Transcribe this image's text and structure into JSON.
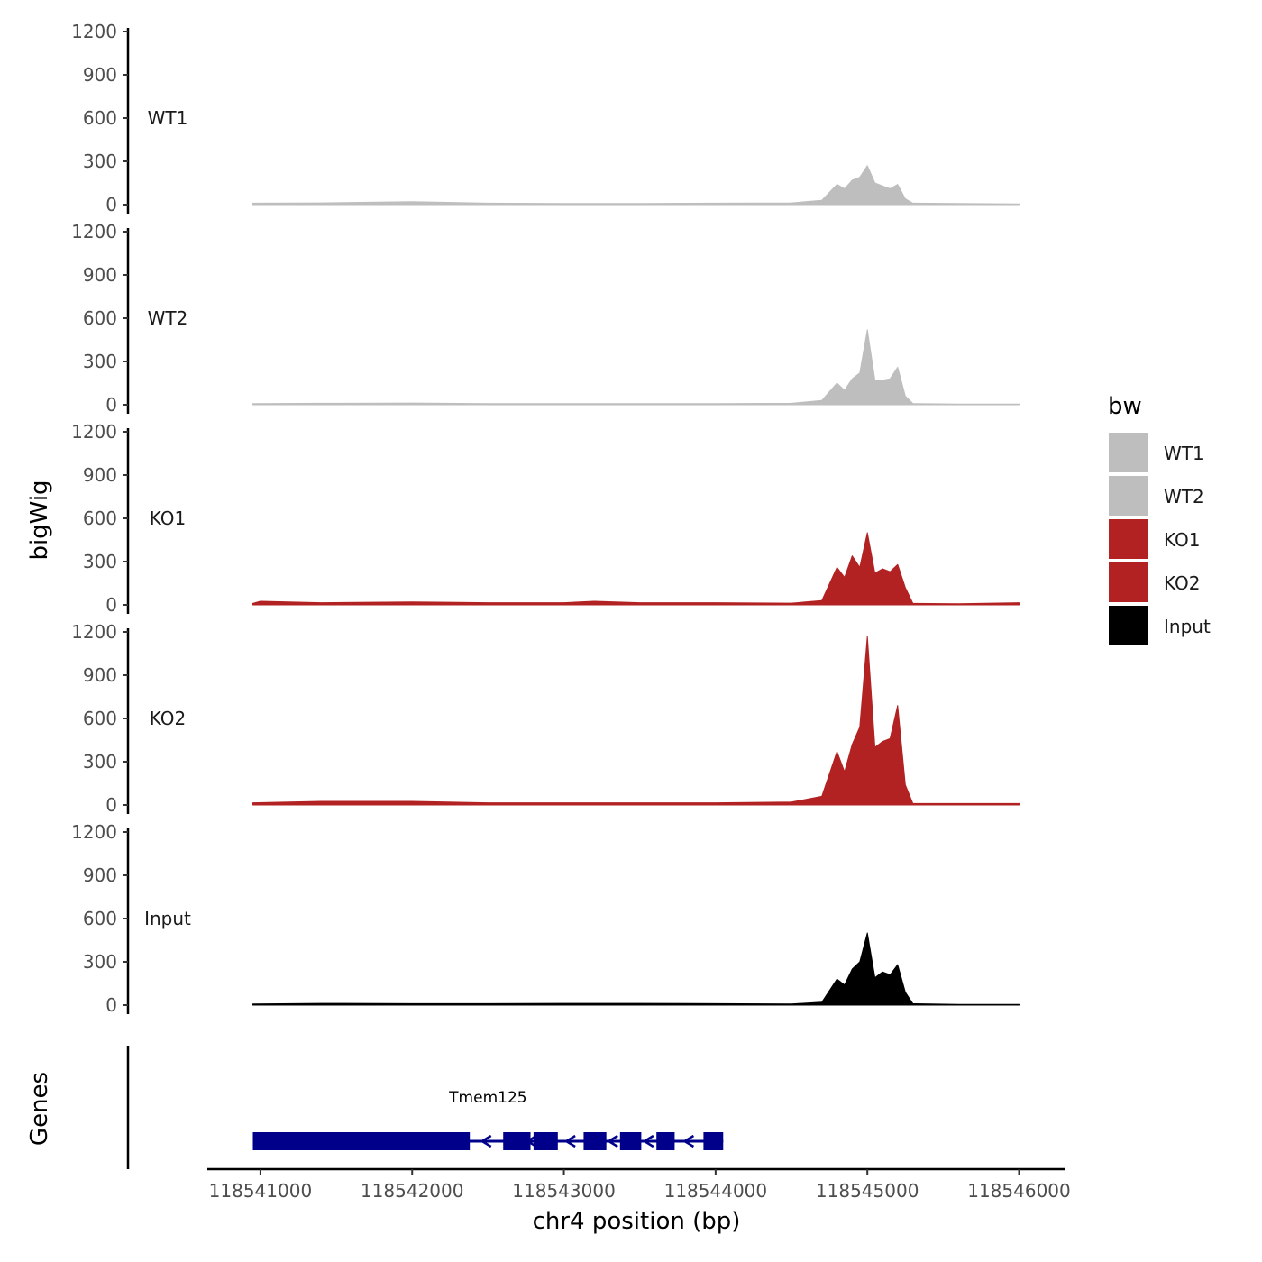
{
  "chart_data": {
    "type": "area",
    "title": "",
    "xlabel": "chr4 position (bp)",
    "ylabel": "bigWig",
    "genes_label": "Genes",
    "xlim": [
      118540650,
      118546300
    ],
    "ylim": [
      0,
      1200
    ],
    "x_ticks": [
      118541000,
      118542000,
      118543000,
      118544000,
      118545000,
      118546000
    ],
    "x_tick_labels": [
      "118541000",
      "118542000",
      "118543000",
      "118544000",
      "118545000",
      "118546000"
    ],
    "y_ticks": [
      0,
      300,
      600,
      900,
      1200
    ],
    "y_tick_labels": [
      "0",
      "300",
      "600",
      "900",
      "1200"
    ],
    "legend": {
      "title": "bw",
      "position": "right",
      "entries": [
        {
          "label": "WT1",
          "color": "#BEBEBE"
        },
        {
          "label": "WT2",
          "color": "#BEBEBE"
        },
        {
          "label": "KO1",
          "color": "#B22222"
        },
        {
          "label": "KO2",
          "color": "#B22222"
        },
        {
          "label": "Input",
          "color": "#000000"
        }
      ]
    },
    "series": [
      {
        "name": "WT1",
        "color": "#BEBEBE",
        "x": [
          118540950,
          118541400,
          118542000,
          118542500,
          118543000,
          118543500,
          118544000,
          118544500,
          118544700,
          118544800,
          118544850,
          118544900,
          118544950,
          118545000,
          118545050,
          118545100,
          118545150,
          118545200,
          118545250,
          118545300,
          118545600,
          118546000
        ],
        "values": [
          10,
          12,
          20,
          10,
          8,
          8,
          10,
          12,
          30,
          140,
          110,
          170,
          190,
          270,
          150,
          130,
          110,
          140,
          40,
          10,
          8,
          5
        ]
      },
      {
        "name": "WT2",
        "color": "#BEBEBE",
        "x": [
          118540950,
          118541400,
          118542000,
          118542500,
          118543000,
          118543500,
          118544000,
          118544500,
          118544700,
          118544800,
          118544850,
          118544900,
          118544950,
          118545000,
          118545050,
          118545100,
          118545150,
          118545200,
          118545250,
          118545300,
          118545600,
          118546000
        ],
        "values": [
          8,
          10,
          12,
          8,
          8,
          8,
          8,
          10,
          30,
          150,
          100,
          180,
          220,
          520,
          170,
          170,
          180,
          260,
          60,
          8,
          5,
          5
        ]
      },
      {
        "name": "KO1",
        "color": "#B22222",
        "x": [
          118540950,
          118541000,
          118541400,
          118542000,
          118542500,
          118543000,
          118543200,
          118543500,
          118544000,
          118544500,
          118544700,
          118544800,
          118544850,
          118544900,
          118544950,
          118545000,
          118545050,
          118545100,
          118545150,
          118545200,
          118545250,
          118545300,
          118545600,
          118546000
        ],
        "values": [
          10,
          25,
          15,
          20,
          15,
          15,
          25,
          15,
          15,
          12,
          30,
          260,
          190,
          340,
          260,
          500,
          220,
          250,
          230,
          280,
          120,
          10,
          8,
          15
        ]
      },
      {
        "name": "KO2",
        "color": "#B22222",
        "x": [
          118540950,
          118541400,
          118542000,
          118542500,
          118543000,
          118543500,
          118544000,
          118544500,
          118544700,
          118544800,
          118544850,
          118544900,
          118544950,
          118545000,
          118545050,
          118545100,
          118545150,
          118545200,
          118545250,
          118545300,
          118545600,
          118546000
        ],
        "values": [
          15,
          25,
          25,
          15,
          15,
          15,
          15,
          20,
          60,
          370,
          230,
          420,
          540,
          1170,
          400,
          440,
          460,
          690,
          140,
          10,
          10,
          10
        ]
      },
      {
        "name": "Input",
        "color": "#000000",
        "x": [
          118540950,
          118541400,
          118542000,
          118542500,
          118543000,
          118543500,
          118544000,
          118544500,
          118544700,
          118544800,
          118544850,
          118544900,
          118544950,
          118545000,
          118545050,
          118545100,
          118545150,
          118545200,
          118545250,
          118545300,
          118545600,
          118546000
        ],
        "values": [
          8,
          12,
          10,
          10,
          12,
          12,
          10,
          8,
          20,
          180,
          140,
          250,
          300,
          500,
          190,
          230,
          210,
          280,
          90,
          10,
          5,
          5
        ]
      }
    ],
    "genes": [
      {
        "name": "Tmem125",
        "color": "#00008B",
        "start": 118540950,
        "end": 118544050,
        "strand": "-",
        "exons": [
          [
            118540950,
            118542380
          ],
          [
            118542600,
            118542780
          ],
          [
            118542800,
            118542960
          ],
          [
            118543130,
            118543280
          ],
          [
            118543370,
            118543510
          ],
          [
            118543610,
            118543730
          ],
          [
            118543920,
            118544050
          ]
        ]
      }
    ]
  }
}
